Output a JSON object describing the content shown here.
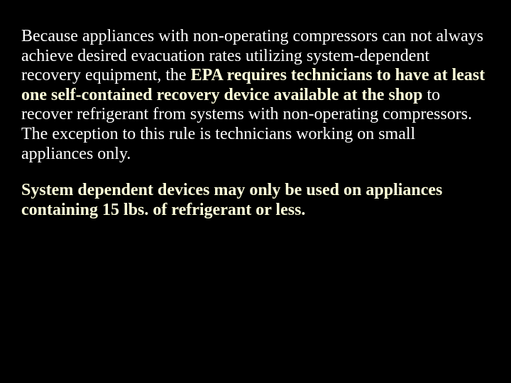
{
  "slide": {
    "background_color": "#000000",
    "text_color": "#ffffff",
    "emphasis_color": "#ffffda",
    "font_family": "Times New Roman",
    "font_size_pt": 24,
    "paragraphs": [
      {
        "pre": "Because appliances with non-operating compressors can not always achieve desired evacuation rates utilizing system-dependent recovery equipment, the ",
        "emph": "EPA requires technicians to have at least one self-contained recovery device available at the shop",
        "post": " to recover refrigerant from systems with non-operating compressors. The exception to this rule is technicians working on small appliances only."
      },
      {
        "pre": "",
        "emph": "System dependent devices may only be used on appliances containing 15 lbs. of refrigerant or less.",
        "post": ""
      }
    ]
  }
}
